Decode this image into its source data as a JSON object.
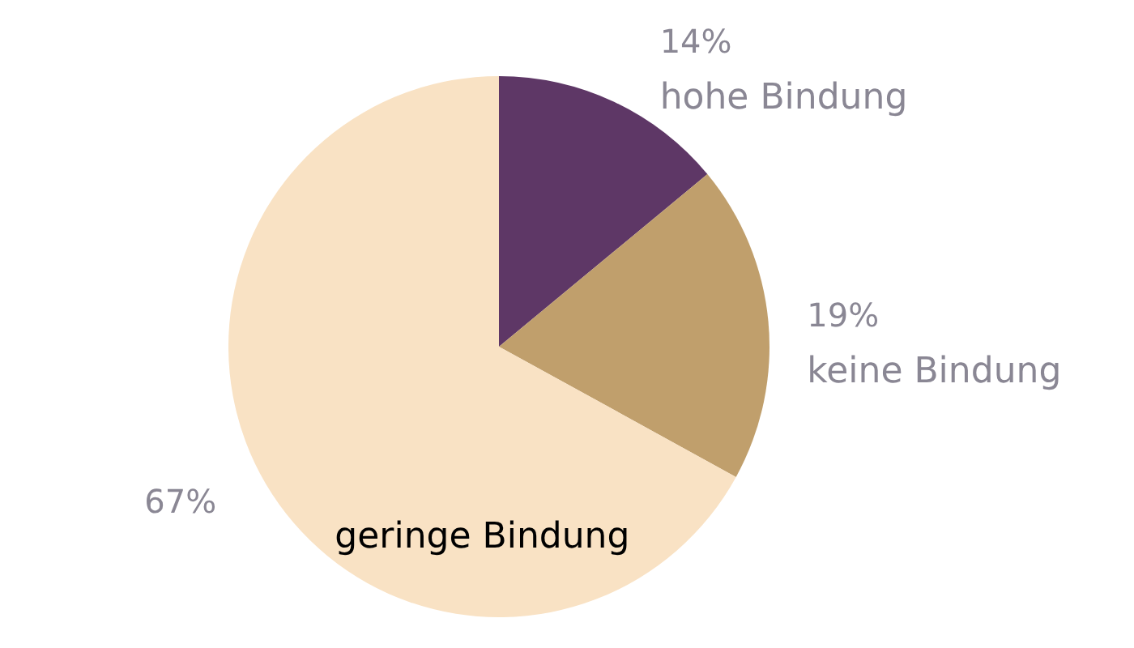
{
  "chart_data": {
    "type": "pie",
    "categories": [
      "hohe Bindung",
      "keine Bindung",
      "geringe Bindung"
    ],
    "values": [
      14,
      19,
      67
    ],
    "colors": [
      "#5e3766",
      "#c09f6c",
      "#f9e2c4"
    ],
    "value_labels": [
      "14%",
      "19%",
      "67%"
    ]
  }
}
